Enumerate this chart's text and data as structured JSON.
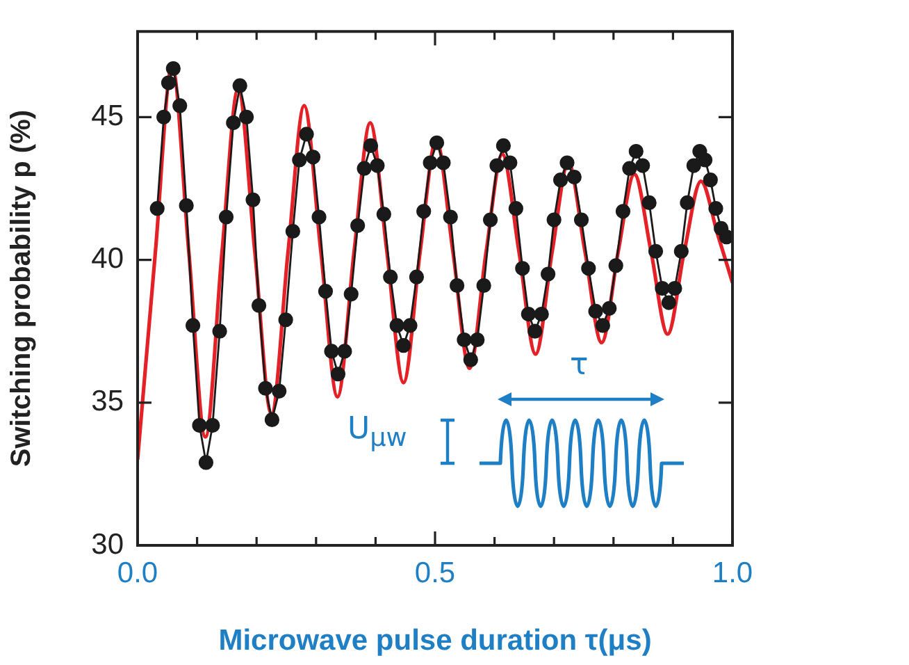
{
  "chart_data": {
    "type": "line",
    "xlabel": "Microwave pulse duration τ(μs)",
    "ylabel": "Switching probability p (%)",
    "xlim": [
      0,
      1
    ],
    "ylim": [
      30,
      48
    ],
    "xticks": [
      {
        "value": 0,
        "label": "0.0"
      },
      {
        "value": 0.1,
        "label": null
      },
      {
        "value": 0.2,
        "label": null
      },
      {
        "value": 0.3,
        "label": null
      },
      {
        "value": 0.4,
        "label": null
      },
      {
        "value": 0.5,
        "label": "0.5"
      },
      {
        "value": 0.6,
        "label": null
      },
      {
        "value": 0.7,
        "label": null
      },
      {
        "value": 0.8,
        "label": null
      },
      {
        "value": 0.9,
        "label": null
      },
      {
        "value": 1,
        "label": "1.0"
      }
    ],
    "yticks": [
      30,
      35,
      40,
      45
    ],
    "grid": false,
    "legend": false,
    "annotations": [
      "τ",
      "U$_{μw}$"
    ],
    "series": [
      {
        "color": "#e42127",
        "marker": "none",
        "x": [
          0,
          0.03,
          0.058,
          0.086,
          0.114,
          0.142,
          0.169,
          0.197,
          0.225,
          0.253,
          0.28,
          0.308,
          0.336,
          0.364,
          0.391,
          0.419,
          0.447,
          0.475,
          0.502,
          0.53,
          0.558,
          0.586,
          0.613,
          0.641,
          0.669,
          0.697,
          0.724,
          0.752,
          0.78,
          0.808,
          0.835,
          0.863,
          0.891,
          0.919,
          0.947,
          0.975,
          1.0
        ],
        "values": [
          33.0,
          40.3,
          46.8,
          40.3,
          33.8,
          40.3,
          46.0,
          40.3,
          34.6,
          40.3,
          45.4,
          40.3,
          35.2,
          40.3,
          44.8,
          40.3,
          35.7,
          40.3,
          44.2,
          40.3,
          36.2,
          40.3,
          43.7,
          40.3,
          36.7,
          40.3,
          43.4,
          40.3,
          37.1,
          40.3,
          43.0,
          40.3,
          37.4,
          40.3,
          42.75,
          40.9,
          39.2
        ]
      },
      {
        "color": "#1a1a1a",
        "marker": "circle",
        "x": [
          0.033,
          0.044,
          0.052,
          0.06,
          0.071,
          0.082,
          0.093,
          0.104,
          0.115,
          0.126,
          0.138,
          0.149,
          0.161,
          0.172,
          0.183,
          0.194,
          0.204,
          0.215,
          0.226,
          0.238,
          0.249,
          0.261,
          0.272,
          0.284,
          0.295,
          0.305,
          0.316,
          0.326,
          0.337,
          0.348,
          0.359,
          0.37,
          0.381,
          0.392,
          0.403,
          0.414,
          0.425,
          0.436,
          0.447,
          0.458,
          0.469,
          0.481,
          0.492,
          0.503,
          0.514,
          0.526,
          0.537,
          0.549,
          0.56,
          0.571,
          0.582,
          0.593,
          0.604,
          0.615,
          0.626,
          0.636,
          0.647,
          0.657,
          0.668,
          0.679,
          0.69,
          0.7,
          0.711,
          0.722,
          0.734,
          0.746,
          0.758,
          0.77,
          0.782,
          0.793,
          0.804,
          0.816,
          0.827,
          0.838,
          0.849,
          0.86,
          0.871,
          0.882,
          0.893,
          0.903,
          0.914,
          0.924,
          0.935,
          0.945,
          0.954,
          0.963,
          0.972,
          0.981,
          0.99
        ],
        "values": [
          41.8,
          45.0,
          46.2,
          46.7,
          45.4,
          41.9,
          37.7,
          34.2,
          32.9,
          34.2,
          37.5,
          41.5,
          44.8,
          46.1,
          45.0,
          42.1,
          38.4,
          35.5,
          34.4,
          35.4,
          37.9,
          41.0,
          43.5,
          44.4,
          43.6,
          41.5,
          38.9,
          36.8,
          36.0,
          36.8,
          38.8,
          41.2,
          43.2,
          44.0,
          43.3,
          41.6,
          39.4,
          37.7,
          37.0,
          37.7,
          39.4,
          41.7,
          43.4,
          44.1,
          43.4,
          41.5,
          39.1,
          37.2,
          36.5,
          37.2,
          39.1,
          41.4,
          43.3,
          44.0,
          43.4,
          41.8,
          39.7,
          38.1,
          37.5,
          38.1,
          39.5,
          41.4,
          42.8,
          43.4,
          42.9,
          41.4,
          39.7,
          38.2,
          37.7,
          38.3,
          39.8,
          41.7,
          43.2,
          43.8,
          43.3,
          42.0,
          40.3,
          39.0,
          38.5,
          39.0,
          40.3,
          42.0,
          43.3,
          43.8,
          43.5,
          42.8,
          41.8,
          41.1,
          40.8
        ]
      }
    ]
  }
}
